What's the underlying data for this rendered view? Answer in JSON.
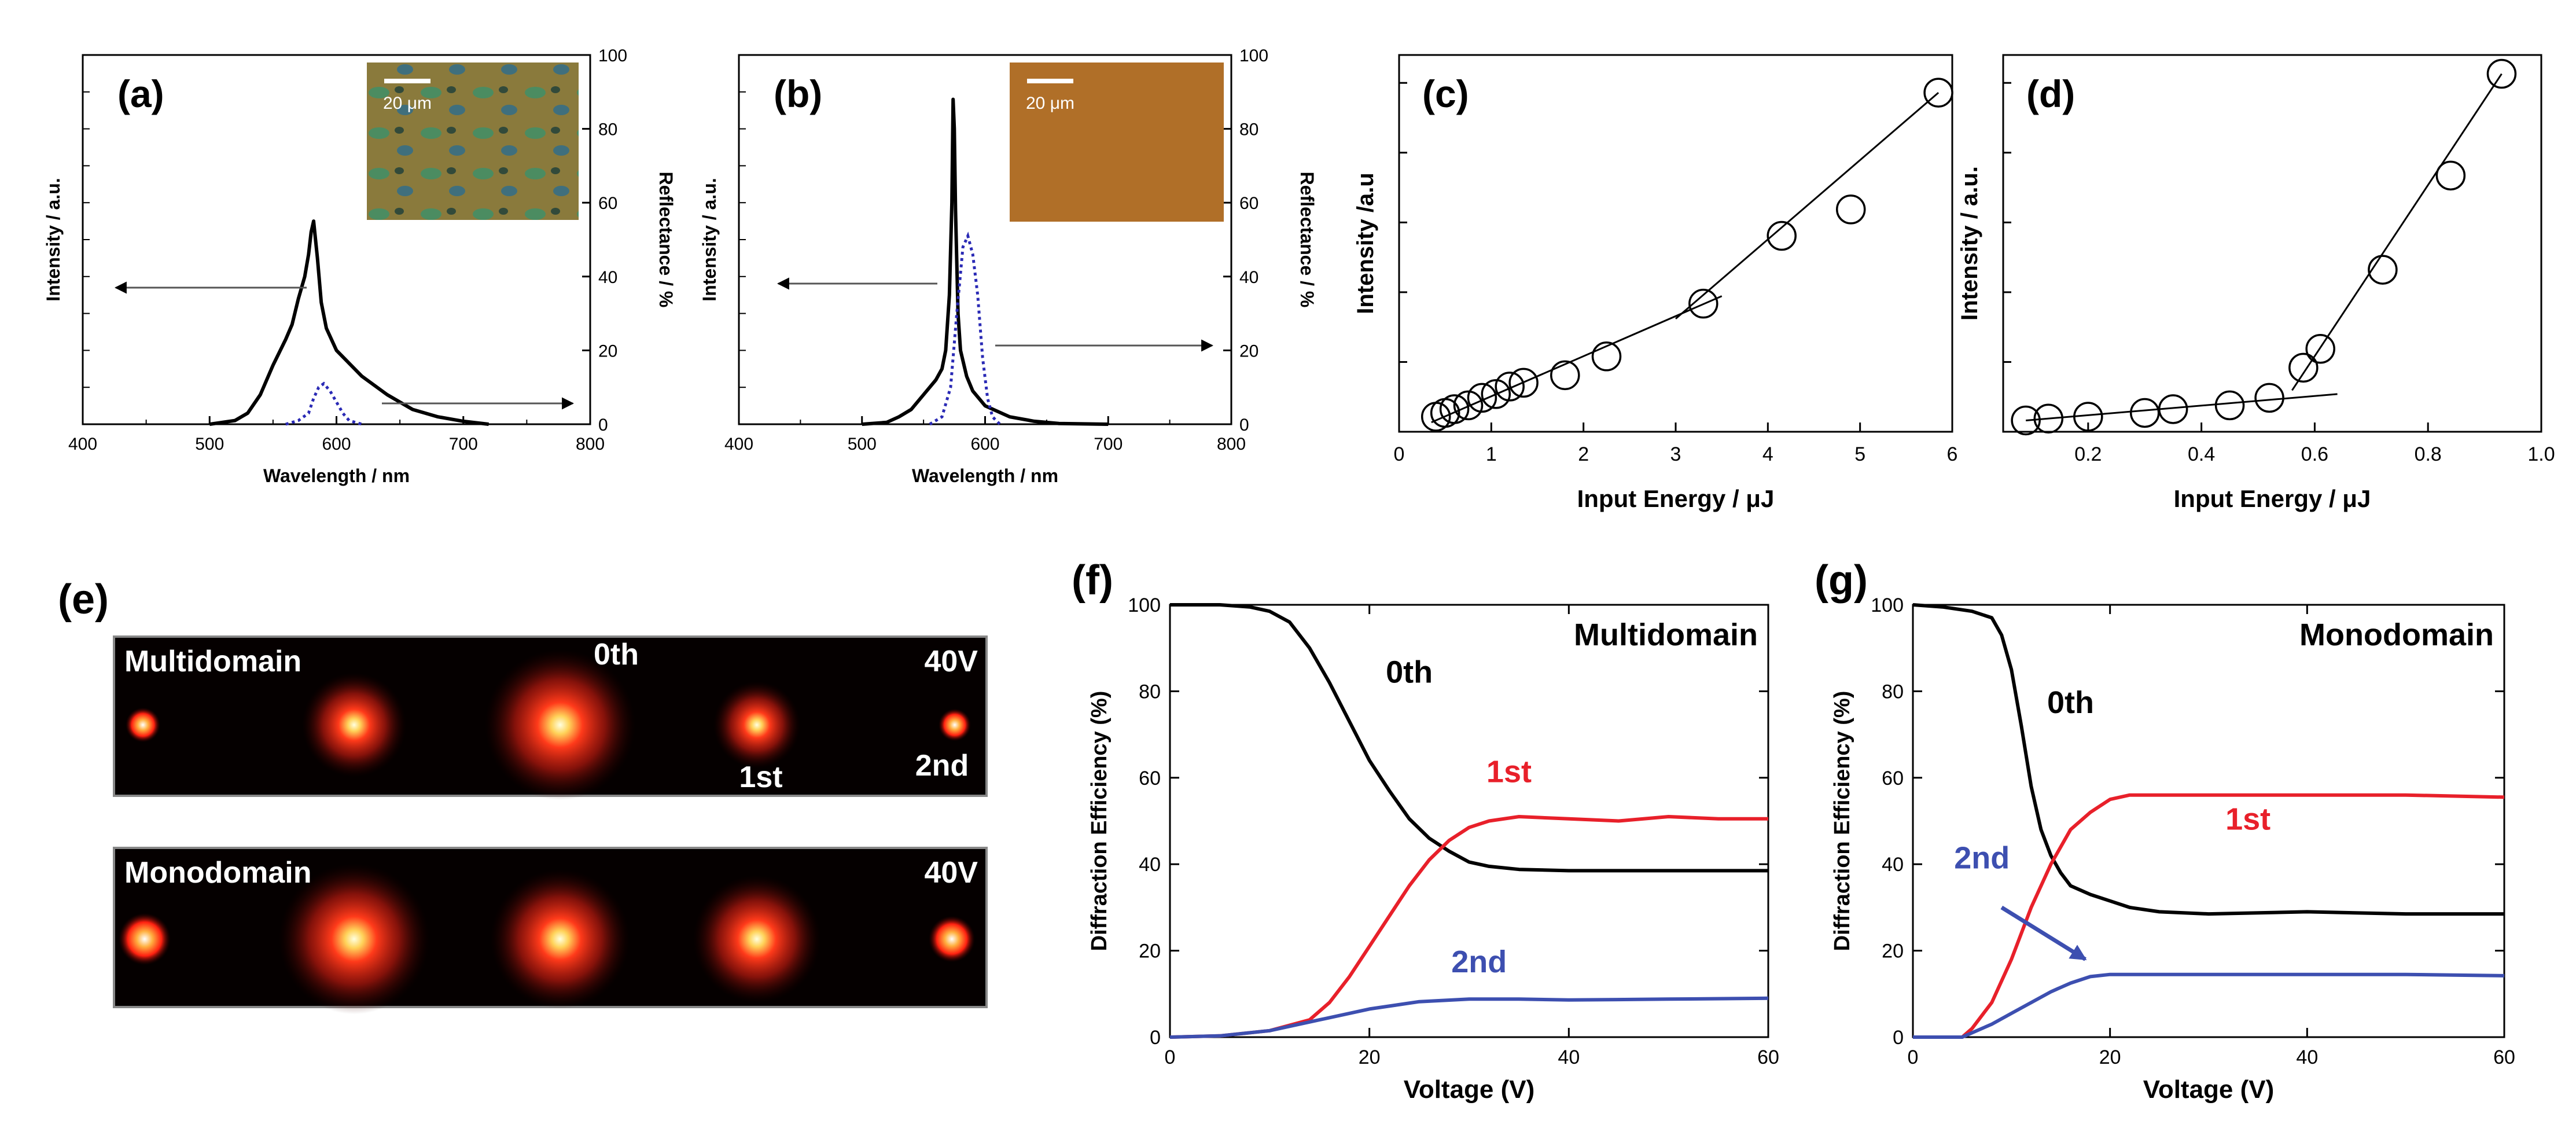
{
  "panels": {
    "a": {
      "letter": "(a)",
      "scale_label": "20 μm"
    },
    "b": {
      "letter": "(b)",
      "scale_label": "20 μm"
    },
    "c": {
      "letter": "(c)"
    },
    "d": {
      "letter": "(d)"
    },
    "e": {
      "letter": "(e)",
      "top": {
        "title": "Multidomain",
        "voltage": "40V",
        "order0": "0th",
        "order1": "1st",
        "order2": "2nd"
      },
      "bottom": {
        "title": "Monodomain",
        "voltage": "40V"
      }
    },
    "f": {
      "letter": "(f)"
    },
    "g": {
      "letter": "(g)"
    }
  },
  "colors": {
    "black": "#000000",
    "red": "#e8202a",
    "blue": "#3d4fb0",
    "dotted": "#2a2ab5",
    "inset_a": "#8a7a3c",
    "inset_b": "#b06f28"
  },
  "chart_data": [
    {
      "id": "a",
      "type": "line",
      "xlabel": "Wavelength / nm",
      "ylabel": "Intensity / a.u.",
      "y2label": "Reflectance / %",
      "xlim": [
        400,
        800
      ],
      "y2lim": [
        0,
        100
      ],
      "xticks": [
        "400",
        "500",
        "600",
        "700",
        "800"
      ],
      "y2ticks": [
        "0",
        "20",
        "40",
        "60",
        "80",
        "100"
      ],
      "series": [
        {
          "name": "Intensity",
          "axis": "left",
          "style": "solid",
          "x": [
            500,
            520,
            530,
            540,
            550,
            560,
            565,
            570,
            575,
            578,
            580,
            582,
            585,
            588,
            592,
            600,
            620,
            640,
            660,
            680,
            700,
            720
          ],
          "y": [
            0,
            1,
            3,
            8,
            16,
            23,
            27,
            34,
            40,
            46,
            52,
            55,
            45,
            33,
            26,
            20,
            13,
            8,
            4,
            2,
            0.8,
            0
          ]
        },
        {
          "name": "Reflectance",
          "axis": "right",
          "style": "dotted",
          "x": [
            560,
            570,
            578,
            582,
            586,
            590,
            595,
            600,
            605,
            610,
            620
          ],
          "y": [
            0,
            1,
            3,
            7,
            10,
            11,
            9,
            6,
            3,
            1,
            0
          ]
        }
      ]
    },
    {
      "id": "b",
      "type": "line",
      "xlabel": "Wavelength / nm",
      "ylabel": "Intensity / a.u.",
      "y2label": "Reflectance / %",
      "xlim": [
        400,
        800
      ],
      "y2lim": [
        0,
        100
      ],
      "xticks": [
        "400",
        "500",
        "600",
        "700",
        "800"
      ],
      "y2ticks": [
        "0",
        "20",
        "40",
        "60",
        "80",
        "100"
      ],
      "series": [
        {
          "name": "Intensity",
          "axis": "left",
          "style": "solid",
          "x": [
            500,
            520,
            530,
            540,
            550,
            560,
            565,
            568,
            571,
            573,
            574,
            575,
            576,
            578,
            580,
            585,
            590,
            600,
            620,
            640,
            660,
            700
          ],
          "y": [
            0,
            0.5,
            2,
            4,
            8,
            12,
            15,
            20,
            35,
            60,
            88,
            80,
            58,
            30,
            20,
            13,
            9,
            5,
            2,
            0.8,
            0.2,
            0
          ]
        },
        {
          "name": "Reflectance",
          "axis": "right",
          "style": "dotted",
          "x": [
            555,
            565,
            572,
            577,
            582,
            586,
            590,
            594,
            598,
            602,
            606,
            612
          ],
          "y": [
            0,
            2,
            10,
            30,
            48,
            51,
            46,
            35,
            18,
            7,
            2,
            0
          ]
        }
      ]
    },
    {
      "id": "c",
      "type": "scatter",
      "xlabel": "Input Energy / μJ",
      "ylabel": "Intensity /a.u",
      "xlim": [
        0,
        6
      ],
      "ylim": [
        0,
        100
      ],
      "xticks": [
        "0",
        "1",
        "2",
        "3",
        "4",
        "5",
        "6"
      ],
      "points": {
        "x": [
          0.4,
          0.5,
          0.6,
          0.75,
          0.9,
          1.05,
          1.2,
          1.35,
          1.8,
          2.25,
          3.3,
          4.15,
          4.9,
          5.85
        ],
        "y": [
          4,
          5,
          6,
          7,
          9,
          10,
          12,
          13,
          15,
          20,
          34,
          52,
          59,
          90
        ]
      },
      "fits": [
        {
          "x": [
            0.35,
            3.5
          ],
          "y": [
            2.5,
            36
          ]
        },
        {
          "x": [
            3.0,
            5.85
          ],
          "y": [
            30,
            90
          ]
        }
      ]
    },
    {
      "id": "d",
      "type": "scatter",
      "xlabel": "Input Energy / μJ",
      "ylabel": "Intensity / a.u.",
      "xlim": [
        0.05,
        1.0
      ],
      "ylim": [
        0,
        100
      ],
      "xticks": [
        "0.2",
        "0.4",
        "0.6",
        "0.8",
        "1.0"
      ],
      "xtick_values": [
        0.2,
        0.4,
        0.6,
        0.8,
        1.0
      ],
      "points": {
        "x": [
          0.09,
          0.13,
          0.2,
          0.3,
          0.35,
          0.45,
          0.52,
          0.58,
          0.61,
          0.72,
          0.84,
          0.93
        ],
        "y": [
          3,
          3.5,
          4,
          5,
          6,
          7,
          9,
          17,
          22,
          43,
          68,
          95
        ]
      },
      "fits": [
        {
          "x": [
            0.09,
            0.64
          ],
          "y": [
            3,
            10
          ]
        },
        {
          "x": [
            0.56,
            0.93
          ],
          "y": [
            11,
            95
          ]
        }
      ]
    },
    {
      "id": "f",
      "type": "line",
      "xlabel": "Voltage (V)",
      "ylabel": "Diffraction Efficiency (%)",
      "xlim": [
        0,
        60
      ],
      "ylim": [
        0,
        100
      ],
      "xticks": [
        "0",
        "20",
        "40",
        "60"
      ],
      "yticks": [
        "0",
        "20",
        "40",
        "60",
        "80",
        "100"
      ],
      "annotation": "Multidomain",
      "series": [
        {
          "name": "0th",
          "color": "black",
          "x": [
            0,
            5,
            8,
            10,
            12,
            14,
            16,
            18,
            20,
            22,
            24,
            26,
            28,
            30,
            32,
            35,
            40,
            50,
            60
          ],
          "y": [
            100,
            100,
            99.5,
            98.5,
            96,
            90,
            82,
            73,
            64,
            57,
            50.5,
            46,
            43,
            40.5,
            39.5,
            38.8,
            38.5,
            38.5,
            38.5
          ]
        },
        {
          "name": "1st",
          "color": "red",
          "x": [
            0,
            5,
            10,
            14,
            16,
            18,
            20,
            22,
            24,
            26,
            28,
            30,
            32,
            35,
            40,
            45,
            50,
            55,
            60
          ],
          "y": [
            0,
            0.3,
            1.5,
            4,
            8,
            14,
            21,
            28,
            35,
            41,
            45.5,
            48.5,
            50,
            51,
            50.5,
            50,
            51,
            50.5,
            50.5
          ]
        },
        {
          "name": "2nd",
          "color": "blue",
          "x": [
            0,
            5,
            10,
            15,
            20,
            25,
            30,
            35,
            40,
            50,
            60
          ],
          "y": [
            0,
            0.3,
            1.5,
            4,
            6.5,
            8.2,
            8.8,
            8.8,
            8.6,
            8.8,
            9
          ]
        }
      ],
      "labels": [
        "0th",
        "1st",
        "2nd"
      ]
    },
    {
      "id": "g",
      "type": "line",
      "xlabel": "Voltage (V)",
      "ylabel": "Diffraction Efficiency (%)",
      "xlim": [
        0,
        60
      ],
      "ylim": [
        0,
        100
      ],
      "xticks": [
        "0",
        "20",
        "40",
        "60"
      ],
      "yticks": [
        "0",
        "20",
        "40",
        "60",
        "80",
        "100"
      ],
      "annotation": "Monodomain",
      "series": [
        {
          "name": "0th",
          "color": "black",
          "x": [
            0,
            3,
            6,
            8,
            9,
            10,
            11,
            12,
            13,
            14,
            15,
            16,
            18,
            20,
            22,
            25,
            30,
            40,
            50,
            60
          ],
          "y": [
            100,
            99.5,
            98.5,
            97,
            93,
            85,
            72,
            58,
            48,
            42,
            38,
            35,
            33,
            31.5,
            30,
            29,
            28.5,
            29,
            28.5,
            28.5
          ]
        },
        {
          "name": "1st",
          "color": "red",
          "x": [
            0,
            5,
            6,
            8,
            10,
            12,
            14,
            16,
            18,
            20,
            22,
            25,
            30,
            40,
            50,
            60
          ],
          "y": [
            0,
            0,
            2,
            8,
            18,
            30,
            40,
            48,
            52,
            55,
            56,
            56,
            56,
            56,
            56,
            55.5
          ]
        },
        {
          "name": "2nd",
          "color": "blue",
          "x": [
            0,
            5,
            6,
            8,
            10,
            12,
            14,
            16,
            18,
            20,
            25,
            30,
            40,
            50,
            60
          ],
          "y": [
            0,
            0,
            1,
            3,
            5.5,
            8,
            10.5,
            12.5,
            14,
            14.5,
            14.5,
            14.5,
            14.5,
            14.5,
            14.2
          ]
        }
      ],
      "labels": [
        "0th",
        "1st",
        "2nd"
      ]
    }
  ]
}
